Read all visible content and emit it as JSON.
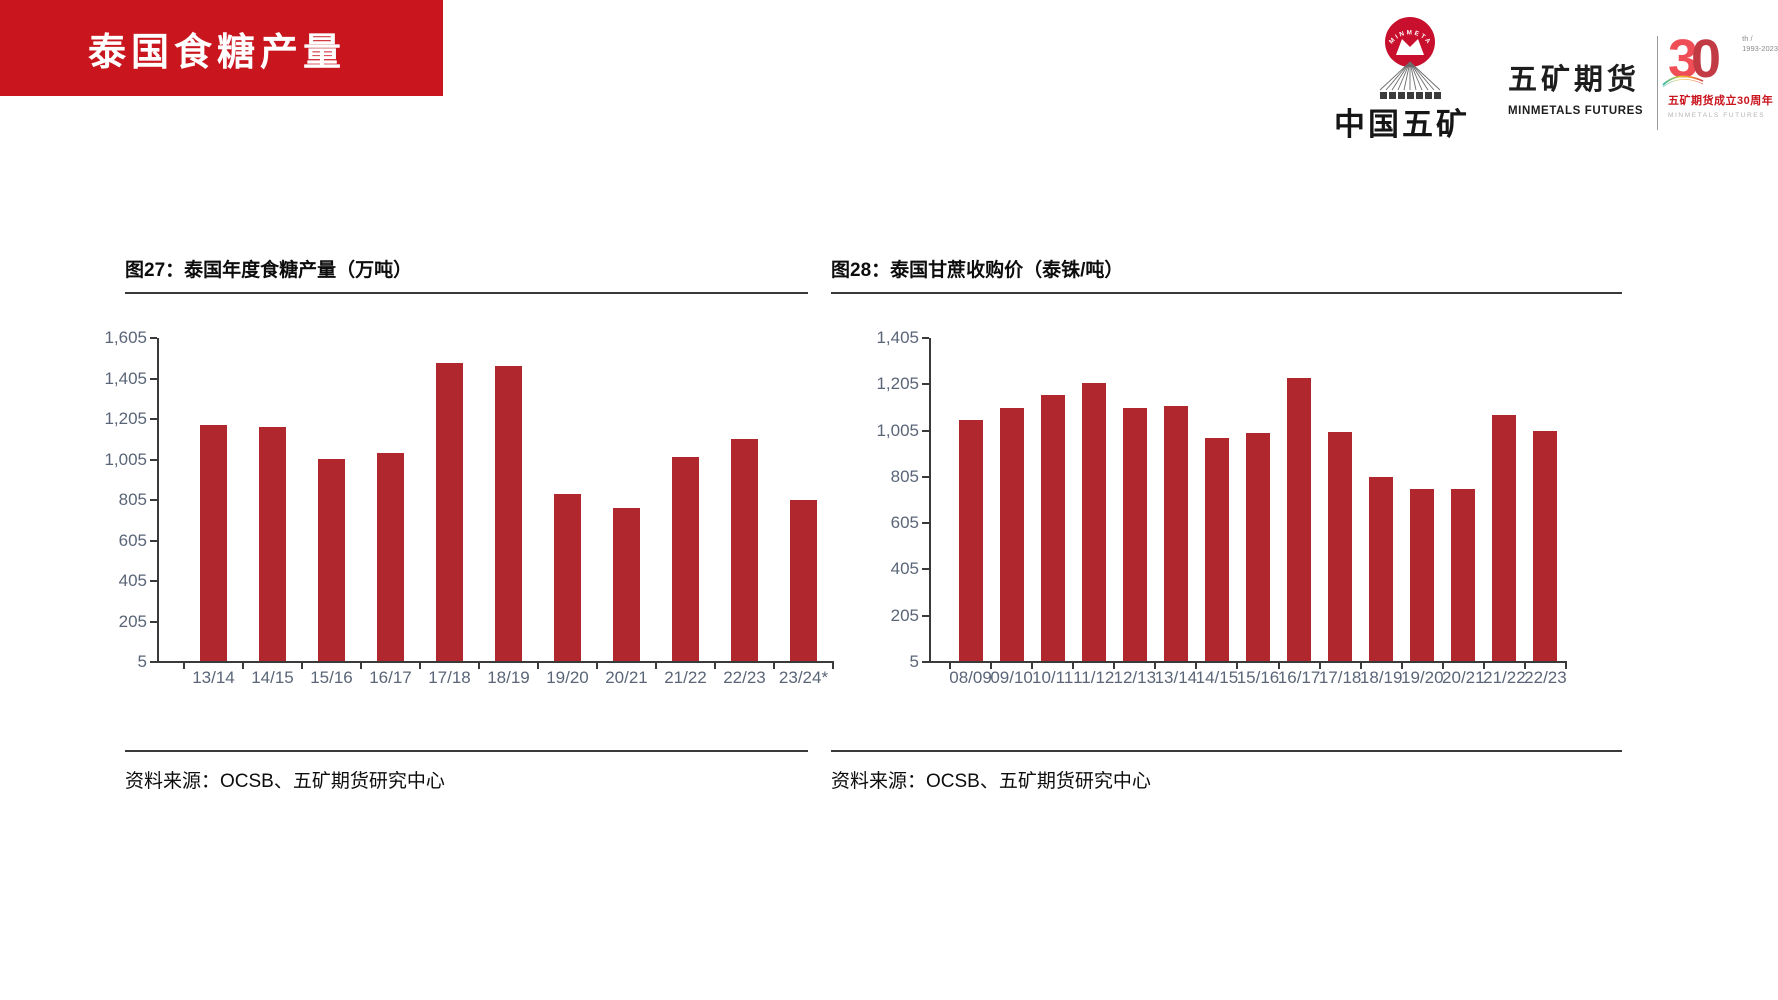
{
  "slide": {
    "banner_title": "泰国食糖产量"
  },
  "header": {
    "company_cn": "中国五矿",
    "brand_cn": "五矿期货",
    "brand_en": "MINMETALS FUTURES",
    "emblem_arc_text": "MINMETALS",
    "anniversary": {
      "big_number": "30",
      "sup": "th /\n1993-2023",
      "caption_cn": "五矿期货成立30周年",
      "caption_en": "MINMETALS  FUTURES"
    }
  },
  "colors": {
    "accent_red": "#c9151e",
    "bar_red": "#b0282e",
    "axis_line": "#3a3a3a",
    "tick_label": "#5a6578"
  },
  "chart_data": [
    {
      "type": "bar",
      "title": "图27：泰国年度食糖产量（万吨）",
      "ylabel": "万吨",
      "categories": [
        "13/14",
        "14/15",
        "15/16",
        "16/17",
        "17/18",
        "18/19",
        "19/20",
        "20/21",
        "21/22",
        "22/23",
        "23/24*"
      ],
      "values": [
        1170,
        1160,
        1005,
        1030,
        1475,
        1460,
        830,
        760,
        1010,
        1100,
        800
      ],
      "ylim": [
        5,
        1605
      ],
      "ytick_labels": [
        "1,605",
        "1,405",
        "1,205",
        "1,005",
        "805",
        "605",
        "405",
        "205",
        "5"
      ],
      "grid": false,
      "legend": "none",
      "bar_color": "#b0282e",
      "source": "资料来源：OCSB、五矿期货研究中心"
    },
    {
      "type": "bar",
      "title": "图28：泰国甘蔗收购价（泰铢/吨）",
      "ylabel": "泰铢/吨",
      "categories": [
        "08/09",
        "09/10",
        "10/11",
        "11/12",
        "12/13",
        "13/14",
        "14/15",
        "15/16",
        "16/17",
        "17/18",
        "18/19",
        "19/20",
        "20/21",
        "21/22",
        "22/23"
      ],
      "values": [
        1045,
        1100,
        1155,
        1205,
        1100,
        1105,
        970,
        990,
        1230,
        995,
        800,
        750,
        750,
        1070,
        1000
      ],
      "ylim": [
        5,
        1405
      ],
      "ytick_labels": [
        "1,405",
        "1,205",
        "1,005",
        "805",
        "605",
        "405",
        "205",
        "5"
      ],
      "grid": false,
      "legend": "none",
      "bar_color": "#b0282e",
      "source": "资料来源：OCSB、五矿期货研究中心"
    }
  ]
}
